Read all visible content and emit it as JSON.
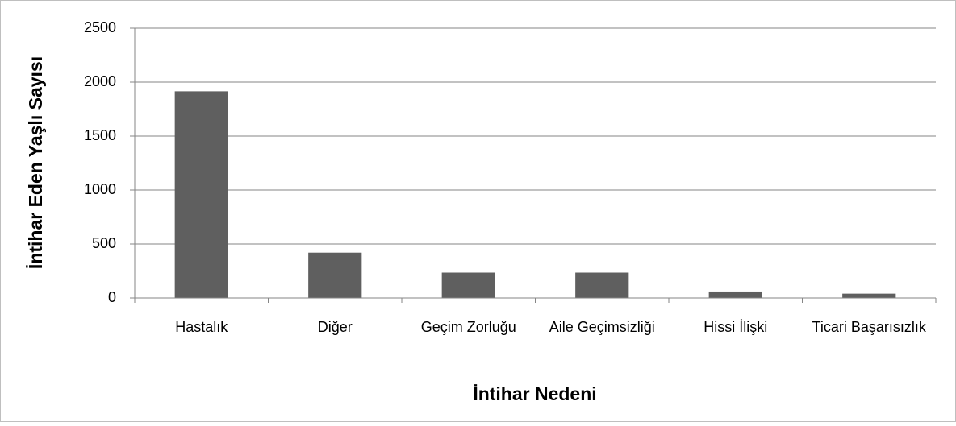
{
  "chart_data": {
    "type": "bar",
    "categories": [
      "Hastalık",
      "Diğer",
      "Geçim Zorluğu",
      "Aile Geçimsizliği",
      "Hissi İlişki",
      "Ticari Başarısızlık"
    ],
    "values": [
      1915,
      420,
      235,
      235,
      60,
      40
    ],
    "color": "#5f5f5f",
    "x_label": "İntihar Nedeni",
    "y_label": "İntihar Eden Yaşlı Sayısı",
    "ylim": [
      0,
      2500
    ],
    "yticks": [
      0,
      500,
      1000,
      1500,
      2000,
      2500
    ],
    "grid": true
  }
}
